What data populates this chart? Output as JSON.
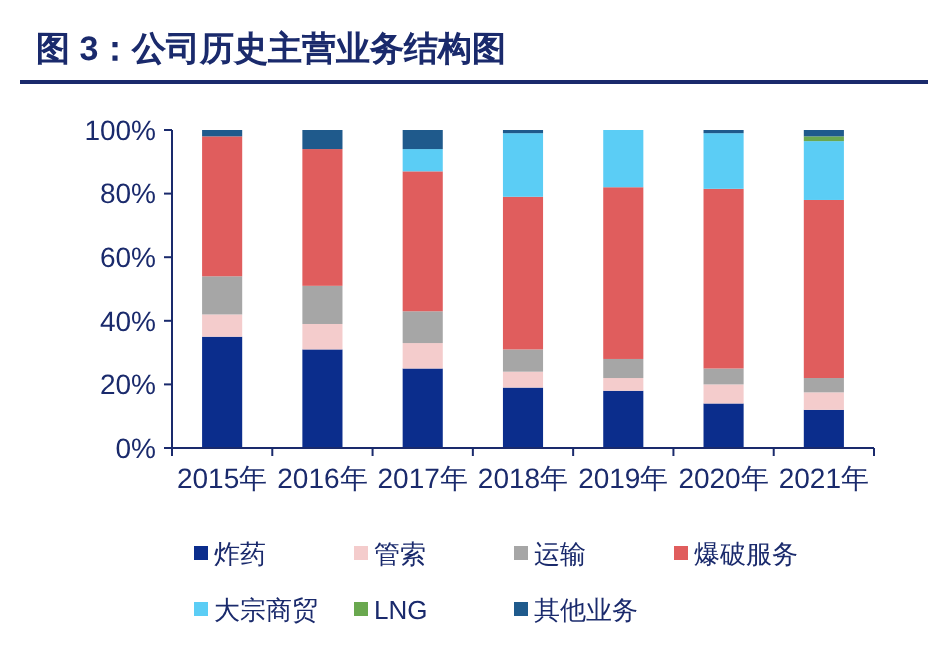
{
  "chart_data": {
    "type": "bar",
    "stacked": true,
    "title": "图 3：公司历史主营业务结构图",
    "categories": [
      "2015年",
      "2016年",
      "2017年",
      "2018年",
      "2019年",
      "2020年",
      "2021年"
    ],
    "series": [
      {
        "name": "炸药",
        "color": "#0b2d8c",
        "values": [
          35,
          31,
          25,
          19,
          18,
          14,
          12
        ]
      },
      {
        "name": "管索",
        "color": "#f4cccc",
        "values": [
          7,
          8,
          8,
          5,
          4,
          6,
          5.5
        ]
      },
      {
        "name": "运输",
        "color": "#a6a6a6",
        "values": [
          12,
          12,
          10,
          7,
          6,
          5,
          4.5
        ]
      },
      {
        "name": "爆破服务",
        "color": "#e05d5d",
        "values": [
          44,
          43,
          44,
          48,
          54,
          56.5,
          56
        ]
      },
      {
        "name": "大宗商贸",
        "color": "#5bcdf5",
        "values": [
          0,
          0,
          7,
          20,
          18,
          17.5,
          18.5
        ]
      },
      {
        "name": "LNG",
        "color": "#6aa84f",
        "values": [
          0,
          0,
          0,
          0,
          0,
          0,
          1.5
        ]
      },
      {
        "name": "其他业务",
        "color": "#1f5a8c",
        "values": [
          2,
          6,
          6,
          1,
          0,
          1,
          2
        ]
      }
    ],
    "ylim": [
      0,
      100
    ],
    "yticks": [
      {
        "value": 0,
        "label": "0%"
      },
      {
        "value": 20,
        "label": "20%"
      },
      {
        "value": 40,
        "label": "40%"
      },
      {
        "value": 60,
        "label": "60%"
      },
      {
        "value": 80,
        "label": "80%"
      },
      {
        "value": 100,
        "label": "100%"
      }
    ],
    "grid": false,
    "legend": "bottom"
  }
}
